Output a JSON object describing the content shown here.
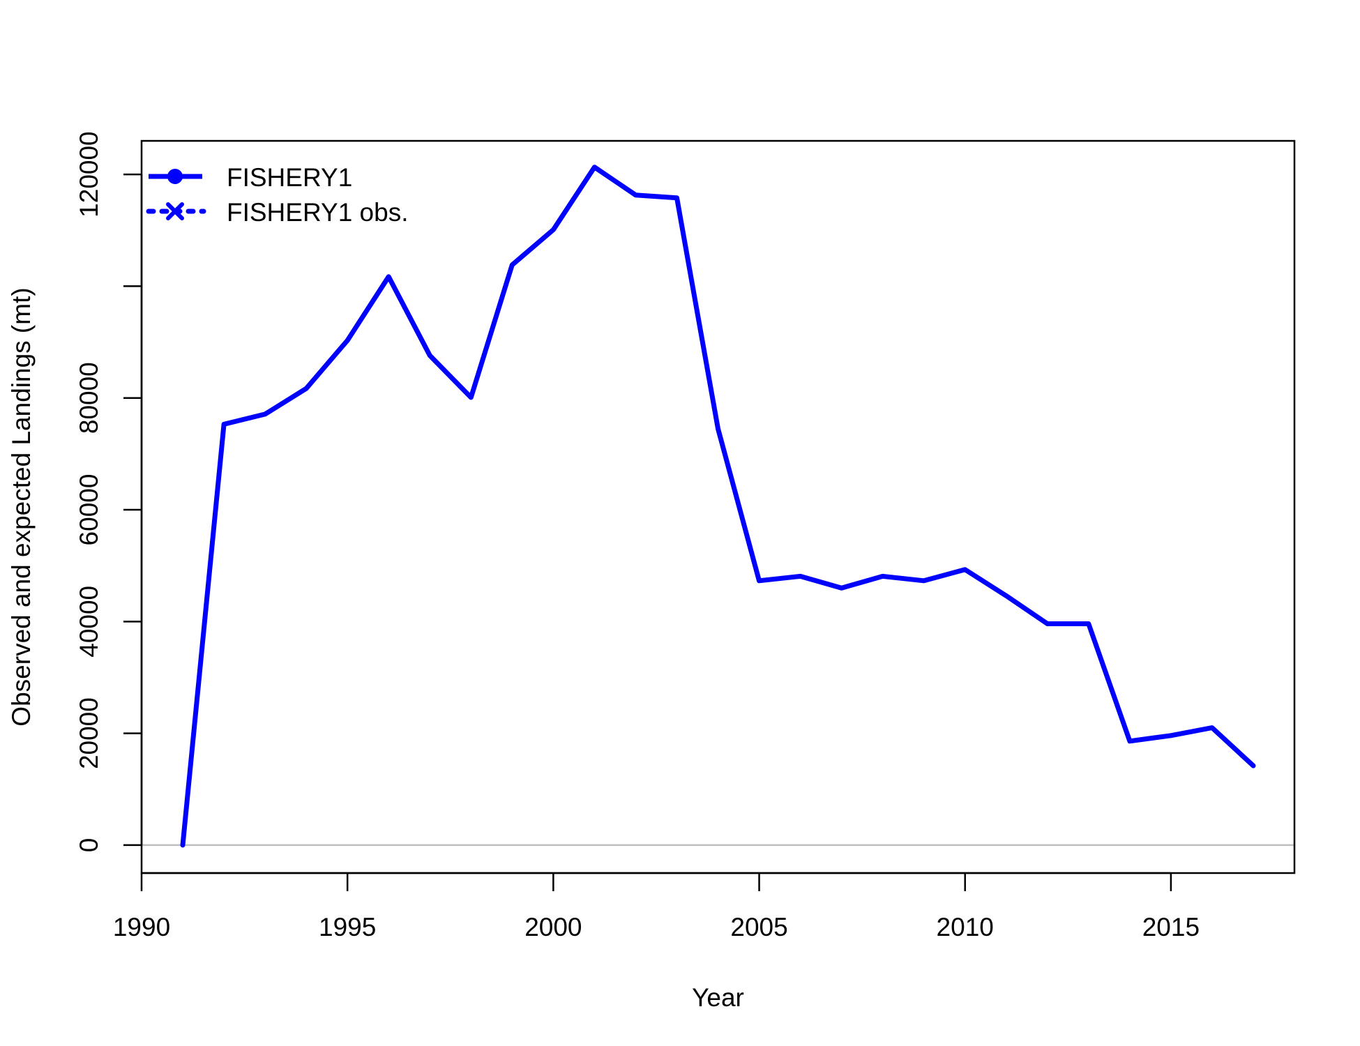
{
  "chart_data": {
    "type": "line",
    "xlabel": "Year",
    "ylabel": "Observed and expected Landings (mt)",
    "xlim": [
      1990,
      2018
    ],
    "ylim": [
      -5000,
      126000
    ],
    "x_ticks": [
      1990,
      1995,
      2000,
      2005,
      2010,
      2015
    ],
    "y_ticks": [
      0,
      20000,
      40000,
      60000,
      80000,
      100000,
      120000
    ],
    "y_tick_labels": [
      "0",
      "20000",
      "40000",
      "60000",
      "80000",
      "",
      "120000"
    ],
    "grid": false,
    "zero_reference_line": true,
    "legend_position": "top-left",
    "legend": [
      {
        "label": "FISHERY1",
        "style": "solid line with filled circle marker"
      },
      {
        "label": "FISHERY1 obs.",
        "style": "dotted line with x marker"
      }
    ],
    "series": [
      {
        "name": "FISHERY1",
        "color": "#0000ff",
        "x": [
          1991,
          1992,
          1993,
          1994,
          1995,
          1996,
          1997,
          1998,
          1999,
          2000,
          2001,
          2002,
          2003,
          2004,
          2005,
          2006,
          2007,
          2008,
          2009,
          2010,
          2011,
          2012,
          2013,
          2014,
          2015,
          2016,
          2017
        ],
        "values": [
          0,
          75300,
          77100,
          81700,
          90300,
          101700,
          87600,
          80100,
          103800,
          110100,
          121300,
          116300,
          115800,
          74500,
          47300,
          48100,
          46000,
          48100,
          47300,
          49300,
          44600,
          39600,
          39600,
          18600,
          19600,
          21000,
          14200
        ]
      }
    ]
  }
}
